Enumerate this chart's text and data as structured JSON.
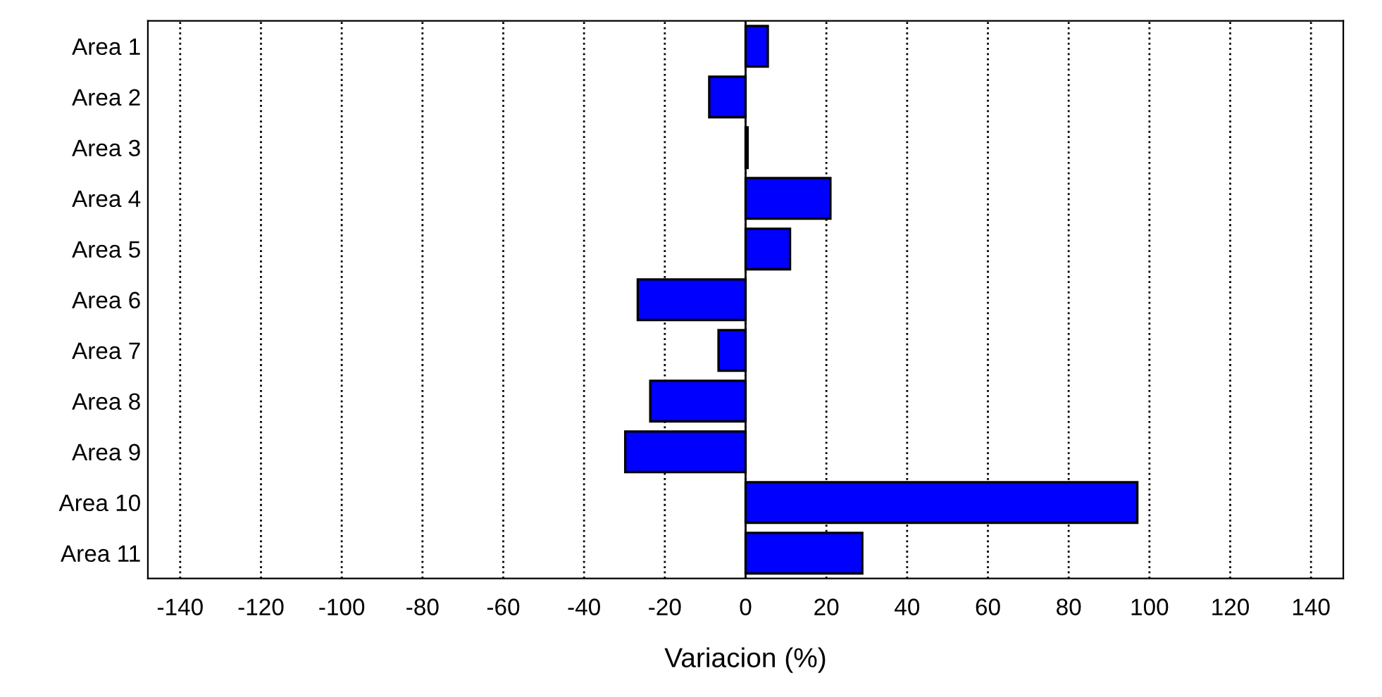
{
  "chart_data": {
    "type": "bar",
    "orientation": "horizontal",
    "xlabel": "Variacion (%)",
    "categories": [
      "Area 1",
      "Area 2",
      "Area 3",
      "Area 4",
      "Area 5",
      "Area 6",
      "Area 7",
      "Area 8",
      "Area 9",
      "Area 10",
      "Area 11"
    ],
    "values": [
      5.5,
      -9,
      0.5,
      21,
      11,
      -26.7,
      -6.7,
      -23.6,
      -29.8,
      97,
      28.9
    ],
    "color": "#0000ff",
    "xlim": [
      -148,
      148
    ],
    "xticks": [
      -140,
      -120,
      -100,
      -80,
      -60,
      -40,
      -20,
      0,
      20,
      40,
      60,
      80,
      100,
      120,
      140
    ],
    "grid": "x",
    "line_style": "dotted"
  }
}
